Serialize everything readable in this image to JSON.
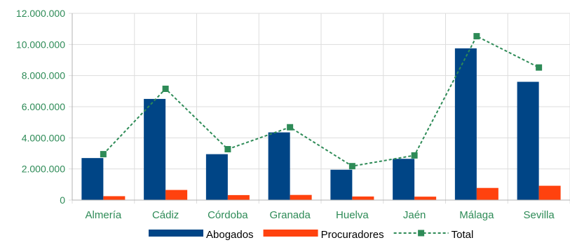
{
  "chart_data": {
    "type": "bar",
    "categories": [
      "Almería",
      "Cádiz",
      "Córdoba",
      "Granada",
      "Huelva",
      "Jaén",
      "Málaga",
      "Sevilla"
    ],
    "y_ticks": [
      "0",
      "2.000.000",
      "4.000.000",
      "6.000.000",
      "8.000.000",
      "10.000.000",
      "12.000.000"
    ],
    "ylim": [
      0,
      12000000
    ],
    "grid": true,
    "legend_position": "bottom",
    "series": [
      {
        "name": "Abogados",
        "kind": "bar",
        "color": "#004586",
        "values": [
          2700000,
          6500000,
          2950000,
          4350000,
          1950000,
          2650000,
          9750000,
          7600000
        ]
      },
      {
        "name": "Procuradores",
        "kind": "bar",
        "color": "#ff420e",
        "values": [
          250000,
          650000,
          320000,
          330000,
          230000,
          220000,
          780000,
          920000
        ]
      },
      {
        "name": "Total",
        "kind": "line",
        "color": "#2e8b57",
        "line_style": "dashed",
        "marker": "square",
        "values": [
          2950000,
          7150000,
          3270000,
          4680000,
          2180000,
          2870000,
          10530000,
          8520000
        ]
      }
    ],
    "axis_label_color": "#2e8b57",
    "grid_color": "#dddddd"
  }
}
